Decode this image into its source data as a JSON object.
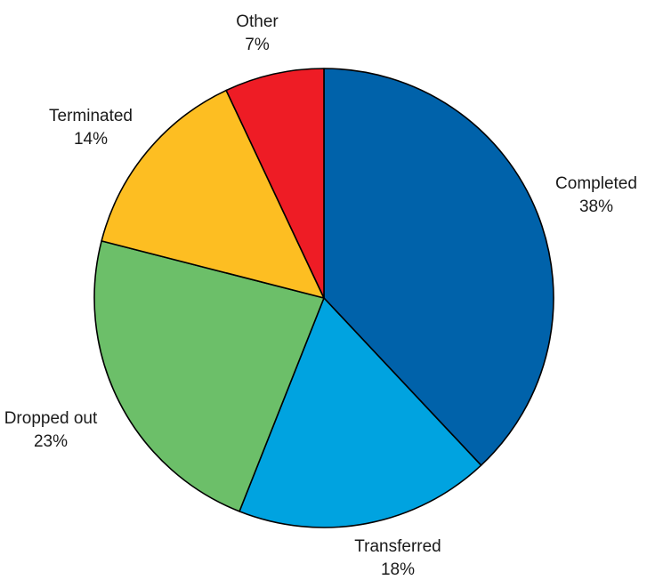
{
  "chart_data": {
    "type": "pie",
    "title": "",
    "start": "12 o'clock",
    "direction": "clockwise",
    "legend": "none",
    "slices": [
      {
        "label": "Completed",
        "value": 38,
        "value_label": "38%",
        "color": "#0062AA"
      },
      {
        "label": "Transferred",
        "value": 18,
        "value_label": "18%",
        "color": "#00A3E0"
      },
      {
        "label": "Dropped out",
        "value": 23,
        "value_label": "23%",
        "color": "#6CBF69"
      },
      {
        "label": "Terminated",
        "value": 14,
        "value_label": "14%",
        "color": "#FDBE22"
      },
      {
        "label": "Other",
        "value": 7,
        "value_label": "7%",
        "color": "#EE1C25"
      }
    ]
  }
}
